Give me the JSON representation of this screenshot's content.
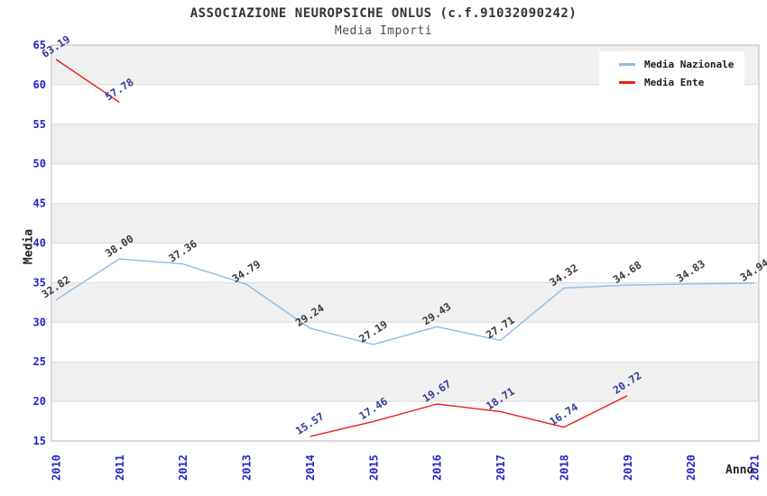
{
  "chart_data": {
    "type": "line",
    "title": "ASSOCIAZIONE NEUROPSICHE ONLUS (c.f.91032090242)",
    "subtitle": "Media Importi",
    "xlabel": "Anno",
    "ylabel": "Media",
    "categories": [
      "2010",
      "2011",
      "2012",
      "2013",
      "2014",
      "2015",
      "2016",
      "2017",
      "2018",
      "2019",
      "2020",
      "2021"
    ],
    "series": [
      {
        "name": "Media Nazionale",
        "color": "#8cbbea",
        "label_color": "#3a3a3a",
        "values": [
          32.82,
          38.0,
          37.36,
          34.79,
          29.24,
          27.19,
          29.43,
          27.71,
          34.32,
          34.68,
          34.83,
          34.94
        ]
      },
      {
        "name": "Media Ente",
        "color": "#e81e1e",
        "label_color": "#333a99",
        "values": [
          63.19,
          57.78,
          null,
          null,
          15.57,
          17.46,
          19.67,
          18.71,
          16.74,
          20.72,
          null,
          null
        ]
      }
    ],
    "ylim": [
      15,
      65
    ],
    "yticks": [
      15,
      20,
      25,
      30,
      35,
      40,
      45,
      50,
      55,
      60,
      65
    ],
    "grid": true,
    "band_fill": "#f0f0f0",
    "gridline_color": "#dcdcdc",
    "spine_color": "#b8b8b8",
    "axis_tick_color": "#2323cd",
    "legend_position": "top-right",
    "label_decimals": 2
  }
}
